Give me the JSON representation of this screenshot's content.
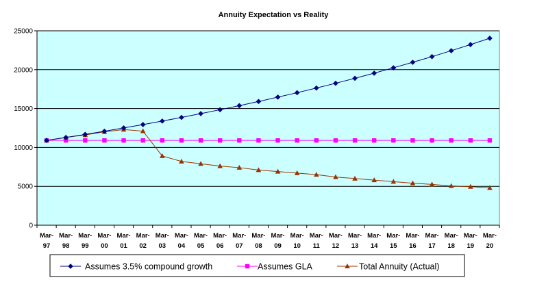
{
  "chart_data": {
    "type": "line",
    "title": "Annuity Expectation vs Reality",
    "xlabel": "",
    "ylabel": "",
    "categories": [
      [
        "Mar-",
        "97"
      ],
      [
        "Mar-",
        "98"
      ],
      [
        "Mar-",
        "99"
      ],
      [
        "Mar-",
        "00"
      ],
      [
        "Mar-",
        "01"
      ],
      [
        "Mar-",
        "02"
      ],
      [
        "Mar-",
        "03"
      ],
      [
        "Mar-",
        "04"
      ],
      [
        "Mar-",
        "05"
      ],
      [
        "Mar-",
        "06"
      ],
      [
        "Mar-",
        "07"
      ],
      [
        "Mar-",
        "08"
      ],
      [
        "Mar-",
        "09"
      ],
      [
        "Mar-",
        "10"
      ],
      [
        "Mar-",
        "11"
      ],
      [
        "Mar-",
        "12"
      ],
      [
        "Mar-",
        "13"
      ],
      [
        "Mar-",
        "14"
      ],
      [
        "Mar-",
        "15"
      ],
      [
        "Mar-",
        "16"
      ],
      [
        "Mar-",
        "17"
      ],
      [
        "Mar-",
        "18"
      ],
      [
        "Mar-",
        "19"
      ],
      [
        "Mar-",
        "20"
      ]
    ],
    "ylim": [
      0,
      25000
    ],
    "yticks": [
      "0",
      "5000",
      "10000",
      "15000",
      "20000",
      "25000"
    ],
    "grid": true,
    "legend_position": "bottom",
    "plot_background": "#ccffff",
    "series": [
      {
        "name": "Assumes 3.5% compound growth",
        "color": "#000080",
        "marker": "diamond",
        "values": [
          10900,
          11280,
          11680,
          12080,
          12510,
          12940,
          13390,
          13860,
          14350,
          14850,
          15370,
          15910,
          16470,
          17040,
          17640,
          18250,
          18890,
          19550,
          20240,
          20950,
          21680,
          22440,
          23230,
          24040
        ]
      },
      {
        "name": "Assumes GLA",
        "color": "#ff00ff",
        "marker": "square",
        "values": [
          10900,
          10900,
          10900,
          10900,
          10900,
          10900,
          10900,
          10900,
          10900,
          10900,
          10900,
          10900,
          10900,
          10900,
          10900,
          10900,
          10900,
          10900,
          10900,
          10900,
          10900,
          10900,
          10900,
          10900
        ]
      },
      {
        "name": "Total Annuity (Actual)",
        "color": "#993300",
        "marker": "triangle",
        "values": [
          10900,
          11300,
          11600,
          12000,
          12300,
          12100,
          8900,
          8200,
          7900,
          7600,
          7400,
          7100,
          6900,
          6700,
          6500,
          6200,
          6000,
          5800,
          5600,
          5400,
          5250,
          5050,
          4950,
          4800
        ]
      }
    ]
  }
}
